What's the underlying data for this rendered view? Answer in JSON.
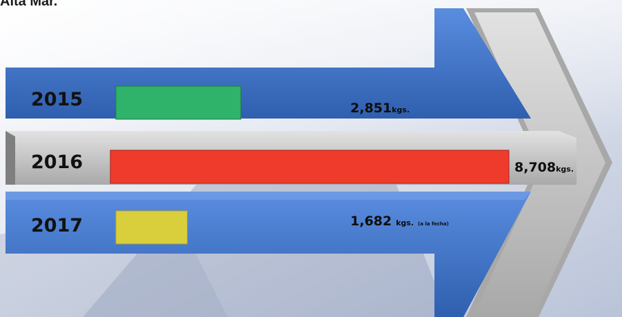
{
  "page": {
    "title_fragment": "Alta Mar."
  },
  "colors": {
    "blue_arrow": "#3f72c4",
    "gray_arrow": "#c9c9c9",
    "bar_2015": "#2fb36b",
    "bar_2016": "#ef3b2c",
    "bar_2017": "#d9cf3d"
  },
  "chart_data": {
    "type": "bar",
    "orientation": "horizontal",
    "categories": [
      "2015",
      "2016",
      "2017"
    ],
    "values": [
      2851,
      8708,
      1682
    ],
    "value_labels": [
      "2,851",
      "8,708",
      "1,682"
    ],
    "units": [
      "kgs.",
      "kgs.",
      "kgs."
    ],
    "notes": [
      "",
      "",
      "(a la fecha)"
    ],
    "xlim": [
      0,
      8708
    ],
    "grid": false,
    "legend": "none"
  }
}
